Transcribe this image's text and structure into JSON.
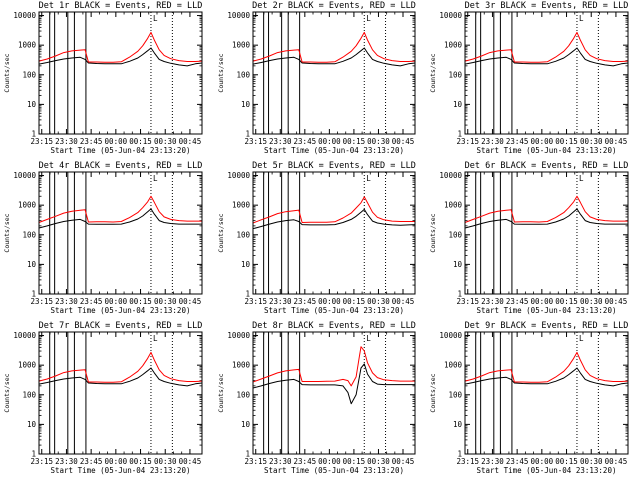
{
  "figure": {
    "x_tick_labels": [
      "23:15",
      "23:30",
      "23:45",
      "00:00",
      "00:15",
      "00:30",
      "00:45"
    ],
    "y_tick_labels": [
      "1",
      "10",
      "100",
      "1000",
      "10000"
    ],
    "marker_label": "L",
    "colors": {
      "events": "#000000",
      "lld": "#ff0000",
      "background": "#ffffff"
    }
  },
  "chart_data": [
    {
      "type": "line",
      "title": "Det 1r BLACK = Events, RED = LLD",
      "xlabel": "Start Time (05-Jun-04 23:13:20)",
      "ylabel": "Counts/sec",
      "xlim": [
        0,
        99
      ],
      "ylim_log10": [
        0,
        4.12
      ],
      "solid_vlines_min": [
        6.5,
        9.5,
        17.5,
        21.5,
        28.5
      ],
      "dotted_vlines_min": [
        68,
        81
      ],
      "x": [
        0,
        5,
        10,
        15,
        20,
        25,
        28,
        30,
        35,
        40,
        45,
        50,
        55,
        60,
        63,
        66,
        68,
        70,
        73,
        76,
        80,
        85,
        90,
        95,
        99
      ],
      "series": [
        {
          "name": "Events",
          "color": "#000000",
          "values": [
            230,
            260,
            300,
            340,
            370,
            390,
            330,
            250,
            240,
            235,
            235,
            235,
            285,
            370,
            480,
            650,
            800,
            550,
            330,
            280,
            245,
            215,
            200,
            235,
            250
          ]
        },
        {
          "name": "LLD",
          "color": "#ff0000",
          "values": [
            290,
            340,
            430,
            560,
            640,
            680,
            700,
            270,
            270,
            265,
            265,
            275,
            395,
            620,
            950,
            1700,
            2700,
            1500,
            700,
            450,
            350,
            300,
            280,
            280,
            290
          ]
        }
      ]
    },
    {
      "type": "line",
      "title": "Det 2r BLACK = Events, RED = LLD",
      "xlabel": "Start Time (05-Jun-04 23:13:20)",
      "ylabel": "Counts/sec",
      "xlim": [
        0,
        99
      ],
      "ylim_log10": [
        0,
        4.12
      ],
      "solid_vlines_min": [
        6.5,
        9.5,
        17.5,
        21.5,
        28.5
      ],
      "dotted_vlines_min": [
        68,
        81
      ],
      "x": [
        0,
        5,
        10,
        15,
        20,
        25,
        28,
        30,
        35,
        40,
        45,
        50,
        55,
        60,
        63,
        66,
        68,
        70,
        73,
        76,
        80,
        85,
        90,
        95,
        99
      ],
      "series": [
        {
          "name": "Events",
          "color": "#000000",
          "values": [
            230,
            260,
            300,
            340,
            370,
            390,
            330,
            250,
            240,
            235,
            235,
            235,
            285,
            370,
            480,
            650,
            800,
            550,
            330,
            280,
            245,
            215,
            200,
            235,
            250
          ]
        },
        {
          "name": "LLD",
          "color": "#ff0000",
          "values": [
            290,
            340,
            430,
            560,
            640,
            680,
            700,
            270,
            270,
            265,
            265,
            275,
            395,
            620,
            950,
            1700,
            2700,
            1500,
            700,
            450,
            350,
            300,
            280,
            280,
            290
          ]
        }
      ]
    },
    {
      "type": "line",
      "title": "Det 3r BLACK = Events, RED = LLD",
      "xlabel": "Start Time (05-Jun-04 23:13:20)",
      "ylabel": "Counts/sec",
      "xlim": [
        0,
        99
      ],
      "ylim_log10": [
        0,
        4.12
      ],
      "solid_vlines_min": [
        6.5,
        9.5,
        17.5,
        21.5,
        28.5
      ],
      "dotted_vlines_min": [
        68,
        81
      ],
      "x": [
        0,
        5,
        10,
        15,
        20,
        25,
        28,
        30,
        35,
        40,
        45,
        50,
        55,
        60,
        63,
        66,
        68,
        70,
        73,
        76,
        80,
        85,
        90,
        95,
        99
      ],
      "series": [
        {
          "name": "Events",
          "color": "#000000",
          "values": [
            230,
            260,
            300,
            340,
            370,
            390,
            330,
            250,
            240,
            235,
            235,
            235,
            285,
            370,
            480,
            650,
            800,
            550,
            330,
            280,
            245,
            215,
            200,
            235,
            250
          ]
        },
        {
          "name": "LLD",
          "color": "#ff0000",
          "values": [
            290,
            340,
            430,
            560,
            640,
            680,
            700,
            270,
            270,
            265,
            265,
            275,
            395,
            620,
            950,
            1700,
            2700,
            1500,
            700,
            450,
            350,
            300,
            280,
            280,
            290
          ]
        }
      ]
    },
    {
      "type": "line",
      "title": "Det 4r BLACK = Events, RED = LLD",
      "xlabel": "Start Time (05-Jun-04 23:13:20)",
      "ylabel": "Counts/sec",
      "xlim": [
        0,
        99
      ],
      "ylim_log10": [
        0,
        4.12
      ],
      "solid_vlines_min": [
        6.5,
        9.5,
        17.5,
        21.5,
        28.5
      ],
      "dotted_vlines_min": [
        68,
        81
      ],
      "x": [
        0,
        5,
        10,
        15,
        20,
        25,
        28,
        30,
        35,
        40,
        45,
        50,
        55,
        60,
        63,
        66,
        68,
        70,
        73,
        76,
        80,
        85,
        90,
        95,
        99
      ],
      "series": [
        {
          "name": "Events",
          "color": "#000000",
          "values": [
            170,
            200,
            240,
            280,
            310,
            330,
            280,
            230,
            225,
            225,
            225,
            230,
            270,
            340,
            430,
            600,
            750,
            500,
            300,
            260,
            240,
            230,
            230,
            230,
            230
          ]
        },
        {
          "name": "LLD",
          "color": "#ff0000",
          "values": [
            260,
            330,
            420,
            540,
            620,
            670,
            700,
            270,
            275,
            275,
            270,
            280,
            380,
            560,
            820,
            1300,
            2000,
            1250,
            600,
            400,
            330,
            300,
            290,
            290,
            290
          ]
        }
      ]
    },
    {
      "type": "line",
      "title": "Det 5r BLACK = Events, RED = LLD",
      "xlabel": "Start Time (05-Jun-04 23:13:20)",
      "ylabel": "Counts/sec",
      "xlim": [
        0,
        99
      ],
      "ylim_log10": [
        0,
        4.12
      ],
      "solid_vlines_min": [
        6.5,
        9.5,
        17.5,
        21.5,
        28.5
      ],
      "dotted_vlines_min": [
        68,
        81
      ],
      "x": [
        0,
        5,
        10,
        15,
        20,
        25,
        28,
        30,
        35,
        40,
        45,
        50,
        55,
        60,
        63,
        66,
        68,
        70,
        73,
        76,
        80,
        85,
        90,
        95,
        99
      ],
      "series": [
        {
          "name": "Events",
          "color": "#000000",
          "values": [
            160,
            190,
            230,
            270,
            300,
            320,
            280,
            220,
            215,
            215,
            215,
            220,
            260,
            330,
            420,
            580,
            720,
            480,
            290,
            250,
            230,
            215,
            210,
            215,
            220
          ]
        },
        {
          "name": "LLD",
          "color": "#ff0000",
          "values": [
            250,
            320,
            400,
            520,
            600,
            650,
            680,
            260,
            265,
            265,
            265,
            275,
            370,
            540,
            800,
            1200,
            1900,
            1200,
            580,
            390,
            320,
            290,
            280,
            280,
            280
          ]
        }
      ]
    },
    {
      "type": "line",
      "title": "Det 6r BLACK = Events, RED = LLD",
      "xlabel": "Start Time (05-Jun-04 23:13:20)",
      "ylabel": "Counts/sec",
      "xlim": [
        0,
        99
      ],
      "ylim_log10": [
        0,
        4.12
      ],
      "solid_vlines_min": [
        6.5,
        9.5,
        17.5,
        21.5,
        28.5
      ],
      "dotted_vlines_min": [
        68,
        81
      ],
      "x": [
        0,
        5,
        10,
        15,
        20,
        25,
        28,
        30,
        35,
        40,
        45,
        50,
        55,
        60,
        63,
        66,
        68,
        70,
        73,
        76,
        80,
        85,
        90,
        95,
        99
      ],
      "series": [
        {
          "name": "Events",
          "color": "#000000",
          "values": [
            170,
            200,
            240,
            280,
            310,
            330,
            280,
            230,
            225,
            225,
            225,
            230,
            270,
            340,
            430,
            600,
            750,
            500,
            300,
            260,
            240,
            230,
            230,
            230,
            230
          ]
        },
        {
          "name": "LLD",
          "color": "#ff0000",
          "values": [
            260,
            330,
            420,
            540,
            620,
            670,
            700,
            270,
            275,
            275,
            270,
            280,
            380,
            560,
            820,
            1300,
            2000,
            1250,
            600,
            400,
            330,
            300,
            290,
            290,
            290
          ]
        }
      ]
    },
    {
      "type": "line",
      "title": "Det 7r BLACK = Events, RED = LLD",
      "xlabel": "Start Time (05-Jun-04 23:13:20)",
      "ylabel": "Counts/sec",
      "xlim": [
        0,
        99
      ],
      "ylim_log10": [
        0,
        4.12
      ],
      "solid_vlines_min": [
        6.5,
        9.5,
        17.5,
        21.5,
        28.5
      ],
      "dotted_vlines_min": [
        68,
        81
      ],
      "x": [
        0,
        5,
        10,
        15,
        20,
        25,
        28,
        30,
        35,
        40,
        45,
        50,
        55,
        60,
        63,
        66,
        68,
        70,
        73,
        76,
        80,
        85,
        90,
        95,
        99
      ],
      "series": [
        {
          "name": "Events",
          "color": "#000000",
          "values": [
            230,
            260,
            300,
            340,
            370,
            390,
            330,
            250,
            240,
            235,
            235,
            235,
            285,
            370,
            480,
            650,
            800,
            550,
            330,
            280,
            245,
            215,
            200,
            235,
            250
          ]
        },
        {
          "name": "LLD",
          "color": "#ff0000",
          "values": [
            290,
            340,
            430,
            560,
            640,
            680,
            700,
            270,
            270,
            265,
            265,
            275,
            395,
            620,
            950,
            1700,
            2700,
            1500,
            700,
            450,
            350,
            300,
            280,
            280,
            290
          ]
        }
      ]
    },
    {
      "type": "line",
      "title": "Det 8r BLACK = Events, RED = LLD",
      "xlabel": "Start Time (05-Jun-04 23:13:20)",
      "ylabel": "Counts/sec",
      "xlim": [
        0,
        99
      ],
      "ylim_log10": [
        0,
        4.12
      ],
      "solid_vlines_min": [
        6.5,
        9.5,
        17.5,
        21.5,
        28.5
      ],
      "dotted_vlines_min": [
        68,
        81
      ],
      "x": [
        0,
        5,
        10,
        15,
        20,
        25,
        28,
        30,
        35,
        40,
        45,
        50,
        55,
        58,
        60,
        63,
        65,
        66,
        68,
        70,
        73,
        76,
        80,
        85,
        90,
        95,
        99
      ],
      "series": [
        {
          "name": "Events",
          "color": "#000000",
          "values": [
            170,
            200,
            240,
            280,
            310,
            330,
            280,
            220,
            215,
            215,
            215,
            215,
            200,
            120,
            50,
            100,
            400,
            800,
            1100,
            500,
            280,
            230,
            220,
            220,
            220,
            220,
            220
          ]
        },
        {
          "name": "LLD",
          "color": "#ff0000",
          "values": [
            270,
            340,
            430,
            550,
            640,
            690,
            720,
            280,
            280,
            280,
            285,
            290,
            330,
            300,
            200,
            400,
            2000,
            4200,
            3000,
            1200,
            550,
            380,
            320,
            300,
            290,
            290,
            290
          ]
        }
      ]
    },
    {
      "type": "line",
      "title": "Det 9r BLACK = Events, RED = LLD",
      "xlabel": "Start Time (05-Jun-04 23:13:20)",
      "ylabel": "Counts/sec",
      "xlim": [
        0,
        99
      ],
      "ylim_log10": [
        0,
        4.12
      ],
      "solid_vlines_min": [
        6.5,
        9.5,
        17.5,
        21.5,
        28.5
      ],
      "dotted_vlines_min": [
        68,
        81
      ],
      "x": [
        0,
        5,
        10,
        15,
        20,
        25,
        28,
        30,
        35,
        40,
        45,
        50,
        55,
        60,
        63,
        66,
        68,
        70,
        73,
        76,
        80,
        85,
        90,
        95,
        99
      ],
      "series": [
        {
          "name": "Events",
          "color": "#000000",
          "values": [
            230,
            260,
            300,
            340,
            370,
            390,
            330,
            250,
            240,
            235,
            235,
            235,
            285,
            370,
            480,
            650,
            800,
            550,
            330,
            280,
            245,
            215,
            200,
            235,
            250
          ]
        },
        {
          "name": "LLD",
          "color": "#ff0000",
          "values": [
            290,
            340,
            430,
            560,
            640,
            680,
            700,
            270,
            270,
            265,
            265,
            275,
            395,
            620,
            950,
            1700,
            2700,
            1500,
            700,
            450,
            350,
            300,
            280,
            280,
            290
          ]
        }
      ]
    }
  ]
}
